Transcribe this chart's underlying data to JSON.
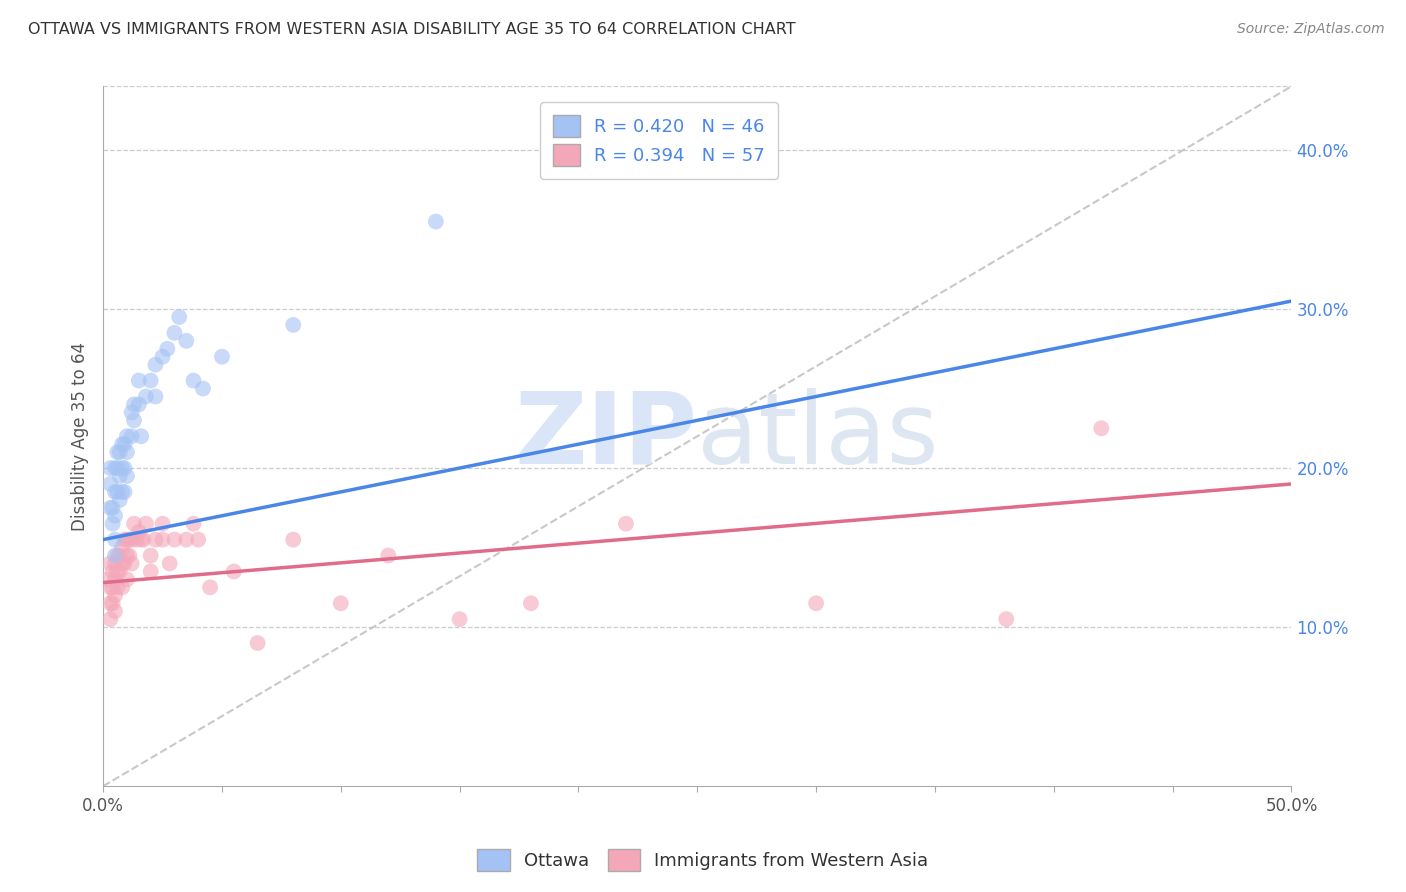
{
  "title": "OTTAWA VS IMMIGRANTS FROM WESTERN ASIA DISABILITY AGE 35 TO 64 CORRELATION CHART",
  "source": "Source: ZipAtlas.com",
  "ylabel": "Disability Age 35 to 64",
  "xlim": [
    0.0,
    0.5
  ],
  "ylim": [
    0.0,
    0.44
  ],
  "xticks": [
    0.0,
    0.05,
    0.1,
    0.15,
    0.2,
    0.25,
    0.3,
    0.35,
    0.4,
    0.45,
    0.5
  ],
  "xtick_labels": [
    "0.0%",
    "",
    "",
    "",
    "",
    "",
    "",
    "",
    "",
    "",
    "50.0%"
  ],
  "yticks_right": [
    0.1,
    0.2,
    0.3,
    0.4
  ],
  "ytick_labels_right": [
    "10.0%",
    "20.0%",
    "30.0%",
    "40.0%"
  ],
  "legend1_label": "Ottawa",
  "legend2_label": "Immigrants from Western Asia",
  "r1": 0.42,
  "n1": 46,
  "r2": 0.394,
  "n2": 57,
  "blue_scatter_color": "#a4c2f4",
  "pink_scatter_color": "#f4a7b9",
  "blue_line_color": "#4a86e8",
  "pink_line_color": "#e06c8a",
  "ref_line_color": "#bbbbbb",
  "label_color": "#4a86e8",
  "watermark_color": "#d6e4f7",
  "background_color": "#ffffff",
  "grid_color": "#cccccc",
  "ottawa_x": [
    0.003,
    0.003,
    0.003,
    0.004,
    0.004,
    0.005,
    0.005,
    0.005,
    0.005,
    0.005,
    0.006,
    0.006,
    0.006,
    0.007,
    0.007,
    0.007,
    0.008,
    0.008,
    0.008,
    0.009,
    0.009,
    0.009,
    0.01,
    0.01,
    0.01,
    0.012,
    0.012,
    0.013,
    0.013,
    0.015,
    0.015,
    0.016,
    0.018,
    0.02,
    0.022,
    0.022,
    0.025,
    0.027,
    0.03,
    0.032,
    0.035,
    0.038,
    0.042,
    0.05,
    0.08,
    0.14
  ],
  "ottawa_y": [
    0.175,
    0.19,
    0.2,
    0.175,
    0.165,
    0.2,
    0.185,
    0.17,
    0.155,
    0.145,
    0.21,
    0.2,
    0.185,
    0.21,
    0.195,
    0.18,
    0.215,
    0.2,
    0.185,
    0.215,
    0.2,
    0.185,
    0.22,
    0.21,
    0.195,
    0.235,
    0.22,
    0.24,
    0.23,
    0.255,
    0.24,
    0.22,
    0.245,
    0.255,
    0.265,
    0.245,
    0.27,
    0.275,
    0.285,
    0.295,
    0.28,
    0.255,
    0.25,
    0.27,
    0.29,
    0.355
  ],
  "immigrants_x": [
    0.002,
    0.003,
    0.003,
    0.003,
    0.003,
    0.004,
    0.004,
    0.004,
    0.005,
    0.005,
    0.005,
    0.005,
    0.006,
    0.006,
    0.006,
    0.007,
    0.007,
    0.008,
    0.008,
    0.008,
    0.009,
    0.009,
    0.01,
    0.01,
    0.01,
    0.011,
    0.011,
    0.012,
    0.012,
    0.013,
    0.014,
    0.015,
    0.016,
    0.017,
    0.018,
    0.02,
    0.02,
    0.022,
    0.025,
    0.025,
    0.028,
    0.03,
    0.035,
    0.038,
    0.04,
    0.045,
    0.055,
    0.065,
    0.08,
    0.1,
    0.12,
    0.15,
    0.18,
    0.22,
    0.3,
    0.38,
    0.42
  ],
  "immigrants_y": [
    0.13,
    0.14,
    0.125,
    0.115,
    0.105,
    0.135,
    0.125,
    0.115,
    0.14,
    0.13,
    0.12,
    0.11,
    0.145,
    0.135,
    0.125,
    0.145,
    0.135,
    0.15,
    0.14,
    0.125,
    0.155,
    0.14,
    0.155,
    0.145,
    0.13,
    0.155,
    0.145,
    0.155,
    0.14,
    0.165,
    0.155,
    0.16,
    0.155,
    0.155,
    0.165,
    0.145,
    0.135,
    0.155,
    0.165,
    0.155,
    0.14,
    0.155,
    0.155,
    0.165,
    0.155,
    0.125,
    0.135,
    0.09,
    0.155,
    0.115,
    0.145,
    0.105,
    0.115,
    0.165,
    0.115,
    0.105,
    0.225
  ],
  "blue_line_x": [
    0.0,
    0.5
  ],
  "blue_line_y": [
    0.155,
    0.305
  ],
  "pink_line_x": [
    0.0,
    0.5
  ],
  "pink_line_y": [
    0.128,
    0.19
  ]
}
